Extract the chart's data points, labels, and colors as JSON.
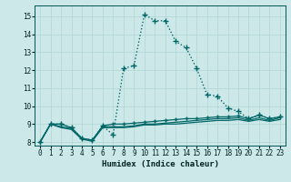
{
  "xlabel": "Humidex (Indice chaleur)",
  "bg_color": "#cde8e8",
  "grid_color": "#b0d4d4",
  "line_color": "#006666",
  "xlim": [
    -0.5,
    23.5
  ],
  "ylim": [
    7.8,
    15.6
  ],
  "yticks": [
    8,
    9,
    10,
    11,
    12,
    13,
    14,
    15
  ],
  "xticks": [
    0,
    1,
    2,
    3,
    4,
    5,
    6,
    7,
    8,
    9,
    10,
    11,
    12,
    13,
    14,
    15,
    16,
    17,
    18,
    19,
    20,
    21,
    22,
    23
  ],
  "series": [
    {
      "x": [
        0,
        1,
        2,
        3,
        4,
        5,
        6,
        7,
        8,
        9,
        10,
        11,
        12,
        13,
        14,
        15,
        16,
        17,
        18,
        19,
        20,
        21,
        22,
        23
      ],
      "y": [
        8.0,
        9.0,
        9.0,
        8.8,
        8.2,
        8.1,
        8.9,
        8.4,
        12.1,
        12.25,
        15.1,
        14.75,
        14.75,
        13.6,
        13.25,
        12.1,
        10.65,
        10.55,
        9.9,
        9.7,
        9.3,
        9.5,
        9.3,
        9.4
      ],
      "linestyle": "dotted",
      "linewidth": 1.0,
      "marker": "+",
      "markersize": 4,
      "zorder": 4
    },
    {
      "x": [
        0,
        1,
        2,
        3,
        4,
        5,
        6,
        7,
        8,
        9,
        10,
        11,
        12,
        13,
        14,
        15,
        16,
        17,
        18,
        19,
        20,
        21,
        22,
        23
      ],
      "y": [
        8.0,
        9.0,
        9.0,
        8.8,
        8.2,
        8.1,
        8.9,
        9.0,
        9.0,
        9.05,
        9.1,
        9.15,
        9.2,
        9.25,
        9.3,
        9.3,
        9.35,
        9.4,
        9.4,
        9.45,
        9.3,
        9.5,
        9.3,
        9.4
      ],
      "linestyle": "-",
      "linewidth": 0.9,
      "marker": "+",
      "markersize": 3,
      "zorder": 3
    },
    {
      "x": [
        0,
        1,
        2,
        3,
        4,
        5,
        6,
        7,
        8,
        9,
        10,
        11,
        12,
        13,
        14,
        15,
        16,
        17,
        18,
        19,
        20,
        21,
        22,
        23
      ],
      "y": [
        8.0,
        9.0,
        8.85,
        8.75,
        8.2,
        8.1,
        8.85,
        8.85,
        8.85,
        8.9,
        9.0,
        9.0,
        9.05,
        9.1,
        9.15,
        9.2,
        9.25,
        9.3,
        9.3,
        9.35,
        9.2,
        9.35,
        9.2,
        9.35
      ],
      "linestyle": "-",
      "linewidth": 0.9,
      "marker": null,
      "markersize": 0,
      "zorder": 2
    },
    {
      "x": [
        0,
        1,
        2,
        3,
        4,
        5,
        6,
        7,
        8,
        9,
        10,
        11,
        12,
        13,
        14,
        15,
        16,
        17,
        18,
        19,
        20,
        21,
        22,
        23
      ],
      "y": [
        8.0,
        9.0,
        8.8,
        8.7,
        8.15,
        8.05,
        8.8,
        8.8,
        8.8,
        8.85,
        8.95,
        8.95,
        9.0,
        9.0,
        9.05,
        9.1,
        9.15,
        9.2,
        9.2,
        9.25,
        9.15,
        9.25,
        9.15,
        9.25
      ],
      "linestyle": "-",
      "linewidth": 0.9,
      "marker": null,
      "markersize": 0,
      "zorder": 2
    }
  ]
}
